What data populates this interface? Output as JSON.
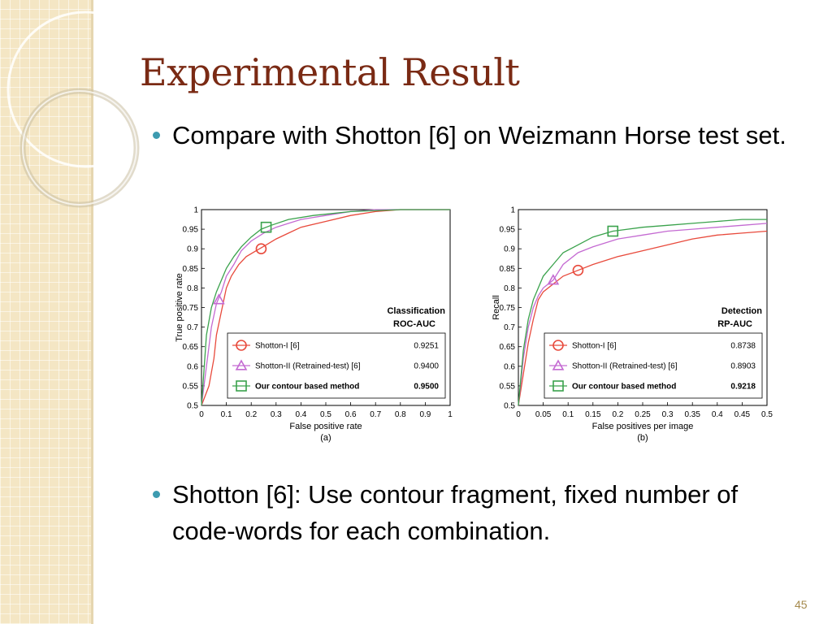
{
  "slide": {
    "title": "Experimental Result",
    "bullets": [
      "Compare with Shotton [6] on Weizmann Horse test set.",
      "Shotton [6]: Use contour fragment, fixed number of code-words for each combination."
    ],
    "slide_number": "45"
  },
  "colors": {
    "title": "#7a2a14",
    "bullet": "#3d9bb0",
    "sidebar": "#f4e6c4",
    "shotton_i": "#e84a3c",
    "shotton_ii": "#c46ad2",
    "contour": "#3aa24c"
  },
  "chart_data": [
    {
      "type": "line",
      "caption": "(a)",
      "title": "Classification",
      "subtitle": "ROC-AUC",
      "xlabel": "False positive rate",
      "ylabel": "True positive rate",
      "xlim": [
        0,
        1
      ],
      "ylim": [
        0.5,
        1
      ],
      "xticks": [
        0,
        0.1,
        0.2,
        0.3,
        0.4,
        0.5,
        0.6,
        0.7,
        0.8,
        0.9,
        1
      ],
      "xtick_labels": [
        "0",
        "0.1",
        "0.2",
        "0.3",
        "0.4",
        "0.5",
        "0.6",
        "0.7",
        "0.8",
        "0.9",
        "1"
      ],
      "yticks": [
        0.5,
        0.55,
        0.6,
        0.65,
        0.7,
        0.75,
        0.8,
        0.85,
        0.9,
        0.95,
        1
      ],
      "ytick_labels": [
        "0.5",
        "0.55",
        "0.6",
        "0.65",
        "0.7",
        "0.75",
        "0.8",
        "0.85",
        "0.9",
        "0.95",
        "1"
      ],
      "legend_position": "bottom-right",
      "series": [
        {
          "name": "Shotton-I [6]",
          "auc": "0.9251",
          "color": "#e84a3c",
          "marker": "circle",
          "marker_at": [
            0.24,
            0.9
          ],
          "bold": false,
          "x": [
            0,
            0.03,
            0.05,
            0.06,
            0.08,
            0.1,
            0.12,
            0.15,
            0.18,
            0.22,
            0.26,
            0.3,
            0.35,
            0.4,
            0.5,
            0.6,
            0.7,
            0.8,
            0.9,
            1
          ],
          "y": [
            0.5,
            0.55,
            0.62,
            0.68,
            0.74,
            0.8,
            0.83,
            0.86,
            0.88,
            0.895,
            0.91,
            0.925,
            0.94,
            0.955,
            0.97,
            0.985,
            0.995,
            1,
            1,
            1
          ]
        },
        {
          "name": "Shotton-II (Retrained-test) [6]",
          "auc": "0.9400",
          "color": "#c46ad2",
          "marker": "triangle",
          "marker_at": [
            0.07,
            0.77
          ],
          "bold": false,
          "x": [
            0,
            0.02,
            0.04,
            0.06,
            0.08,
            0.1,
            0.13,
            0.16,
            0.2,
            0.25,
            0.3,
            0.35,
            0.4,
            0.5,
            0.6,
            0.7,
            0.8,
            1
          ],
          "y": [
            0.5,
            0.6,
            0.7,
            0.76,
            0.79,
            0.83,
            0.86,
            0.895,
            0.92,
            0.94,
            0.955,
            0.965,
            0.975,
            0.985,
            0.995,
            1,
            1,
            1
          ]
        },
        {
          "name": "Our contour based method",
          "auc": "0.9500",
          "color": "#3aa24c",
          "marker": "square",
          "marker_at": [
            0.26,
            0.955
          ],
          "bold": true,
          "x": [
            0,
            0.02,
            0.04,
            0.06,
            0.08,
            0.1,
            0.13,
            0.16,
            0.2,
            0.24,
            0.28,
            0.35,
            0.45,
            0.6,
            0.8,
            1
          ],
          "y": [
            0.5,
            0.68,
            0.75,
            0.79,
            0.82,
            0.85,
            0.88,
            0.905,
            0.93,
            0.95,
            0.96,
            0.975,
            0.985,
            0.995,
            1,
            1
          ]
        }
      ]
    },
    {
      "type": "line",
      "caption": "(b)",
      "title": "Detection",
      "subtitle": "RP-AUC",
      "xlabel": "False positives per image",
      "ylabel": "Recall",
      "xlim": [
        0,
        0.5
      ],
      "ylim": [
        0.5,
        1
      ],
      "xticks": [
        0,
        0.05,
        0.1,
        0.15,
        0.2,
        0.25,
        0.3,
        0.35,
        0.4,
        0.45,
        0.5
      ],
      "xtick_labels": [
        "0",
        "0.05",
        "0.1",
        "0.15",
        "0.2",
        "0.25",
        "0.3",
        "0.35",
        "0.4",
        "0.45",
        "0.5"
      ],
      "yticks": [
        0.5,
        0.55,
        0.6,
        0.65,
        0.7,
        0.75,
        0.8,
        0.85,
        0.9,
        0.95,
        1
      ],
      "ytick_labels": [
        "0.5",
        "0.55",
        "0.6",
        "0.65",
        "0.7",
        "0.75",
        "0.8",
        "0.85",
        "0.9",
        "0.95",
        "1"
      ],
      "legend_position": "bottom-right",
      "series": [
        {
          "name": "Shotton-I [6]",
          "auc": "0.8738",
          "color": "#e84a3c",
          "marker": "circle",
          "marker_at": [
            0.12,
            0.845
          ],
          "bold": false,
          "x": [
            0,
            0.01,
            0.02,
            0.03,
            0.04,
            0.05,
            0.07,
            0.09,
            0.12,
            0.15,
            0.2,
            0.25,
            0.3,
            0.35,
            0.4,
            0.45,
            0.5
          ],
          "y": [
            0.5,
            0.58,
            0.66,
            0.72,
            0.77,
            0.79,
            0.81,
            0.83,
            0.845,
            0.86,
            0.88,
            0.895,
            0.91,
            0.925,
            0.935,
            0.94,
            0.945
          ]
        },
        {
          "name": "Shotton-II (Retrained-test) [6]",
          "auc": "0.8903",
          "color": "#c46ad2",
          "marker": "triangle",
          "marker_at": [
            0.07,
            0.82
          ],
          "bold": false,
          "x": [
            0,
            0.01,
            0.02,
            0.03,
            0.04,
            0.05,
            0.07,
            0.09,
            0.12,
            0.15,
            0.2,
            0.25,
            0.3,
            0.35,
            0.4,
            0.45,
            0.5
          ],
          "y": [
            0.5,
            0.62,
            0.7,
            0.75,
            0.78,
            0.8,
            0.82,
            0.86,
            0.89,
            0.905,
            0.925,
            0.935,
            0.945,
            0.95,
            0.955,
            0.96,
            0.965
          ]
        },
        {
          "name": "Our contour based method",
          "auc": "0.9218",
          "color": "#3aa24c",
          "marker": "square",
          "marker_at": [
            0.19,
            0.945
          ],
          "bold": true,
          "x": [
            0,
            0.01,
            0.02,
            0.03,
            0.04,
            0.05,
            0.07,
            0.09,
            0.12,
            0.15,
            0.19,
            0.25,
            0.3,
            0.35,
            0.4,
            0.45,
            0.5
          ],
          "y": [
            0.5,
            0.64,
            0.72,
            0.77,
            0.8,
            0.83,
            0.86,
            0.89,
            0.91,
            0.93,
            0.945,
            0.955,
            0.96,
            0.965,
            0.97,
            0.975,
            0.975
          ]
        }
      ]
    }
  ]
}
